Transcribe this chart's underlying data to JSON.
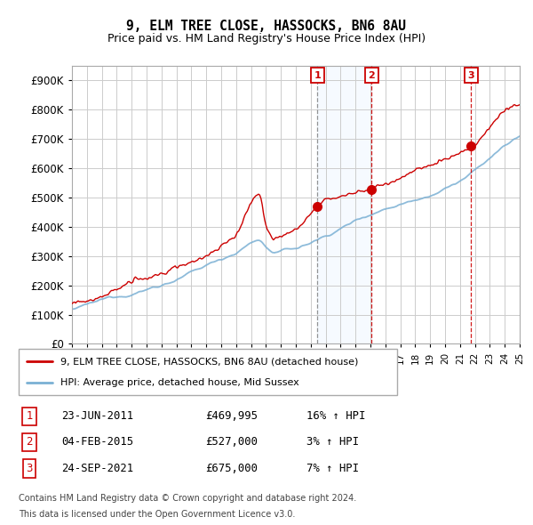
{
  "title": "9, ELM TREE CLOSE, HASSOCKS, BN6 8AU",
  "subtitle": "Price paid vs. HM Land Registry's House Price Index (HPI)",
  "red_label": "9, ELM TREE CLOSE, HASSOCKS, BN6 8AU (detached house)",
  "blue_label": "HPI: Average price, detached house, Mid Sussex",
  "footer1": "Contains HM Land Registry data © Crown copyright and database right 2024.",
  "footer2": "This data is licensed under the Open Government Licence v3.0.",
  "transactions": [
    {
      "num": "1",
      "date": "23-JUN-2011",
      "price": "£469,995",
      "hpi": "16% ↑ HPI"
    },
    {
      "num": "2",
      "date": "04-FEB-2015",
      "price": "£527,000",
      "hpi": "3% ↑ HPI"
    },
    {
      "num": "3",
      "date": "24-SEP-2021",
      "price": "£675,000",
      "hpi": "7% ↑ HPI"
    }
  ],
  "sale_years": [
    2011.458,
    2015.083,
    2021.75
  ],
  "sale_prices": [
    469995,
    527000,
    675000
  ],
  "ylim": [
    0,
    950000
  ],
  "yticks": [
    0,
    100000,
    200000,
    300000,
    400000,
    500000,
    600000,
    700000,
    800000,
    900000
  ],
  "xlim_year_start": 1995,
  "xlim_year_end": 2025,
  "background_color": "#ffffff",
  "plot_bg_color": "#ffffff",
  "grid_color": "#cccccc",
  "red_color": "#cc0000",
  "blue_color": "#7ab0d4",
  "shade_color": "#ddeeff"
}
